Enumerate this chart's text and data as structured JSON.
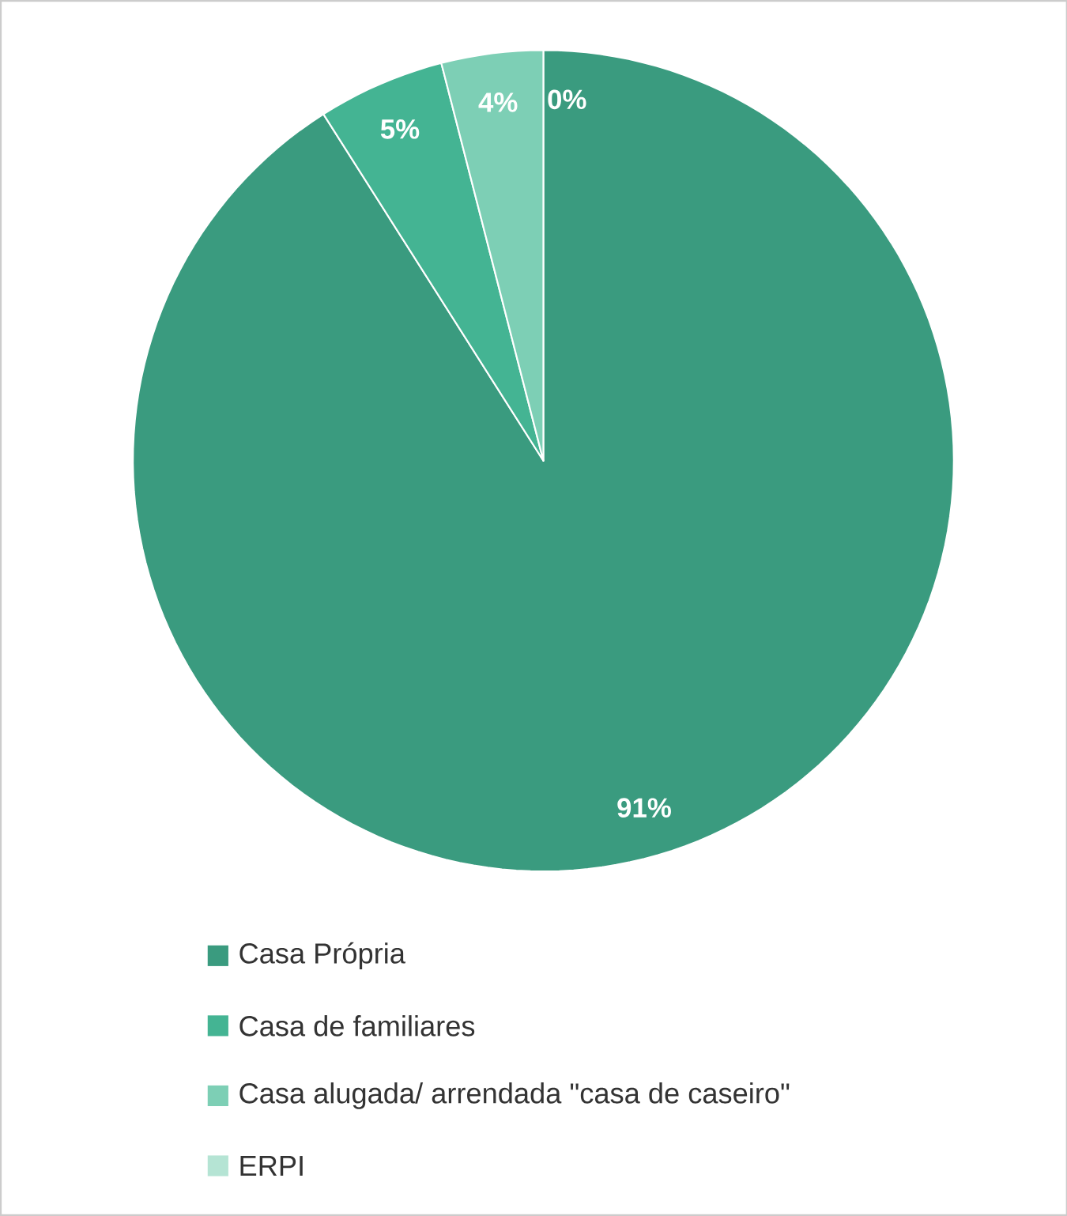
{
  "chart_data": {
    "type": "pie",
    "categories": [
      "Casa Própria",
      "Casa de familiares",
      "Casa alugada/ arrendada \"casa de caseiro\"",
      "ERPI"
    ],
    "values": [
      91,
      5,
      4,
      0
    ],
    "value_labels": [
      "91%",
      "5%",
      "4%",
      "0%"
    ],
    "colors": [
      "#3a9b7f",
      "#44b493",
      "#7dcfb5",
      "#b5e4d4"
    ],
    "legend": "bottom"
  }
}
